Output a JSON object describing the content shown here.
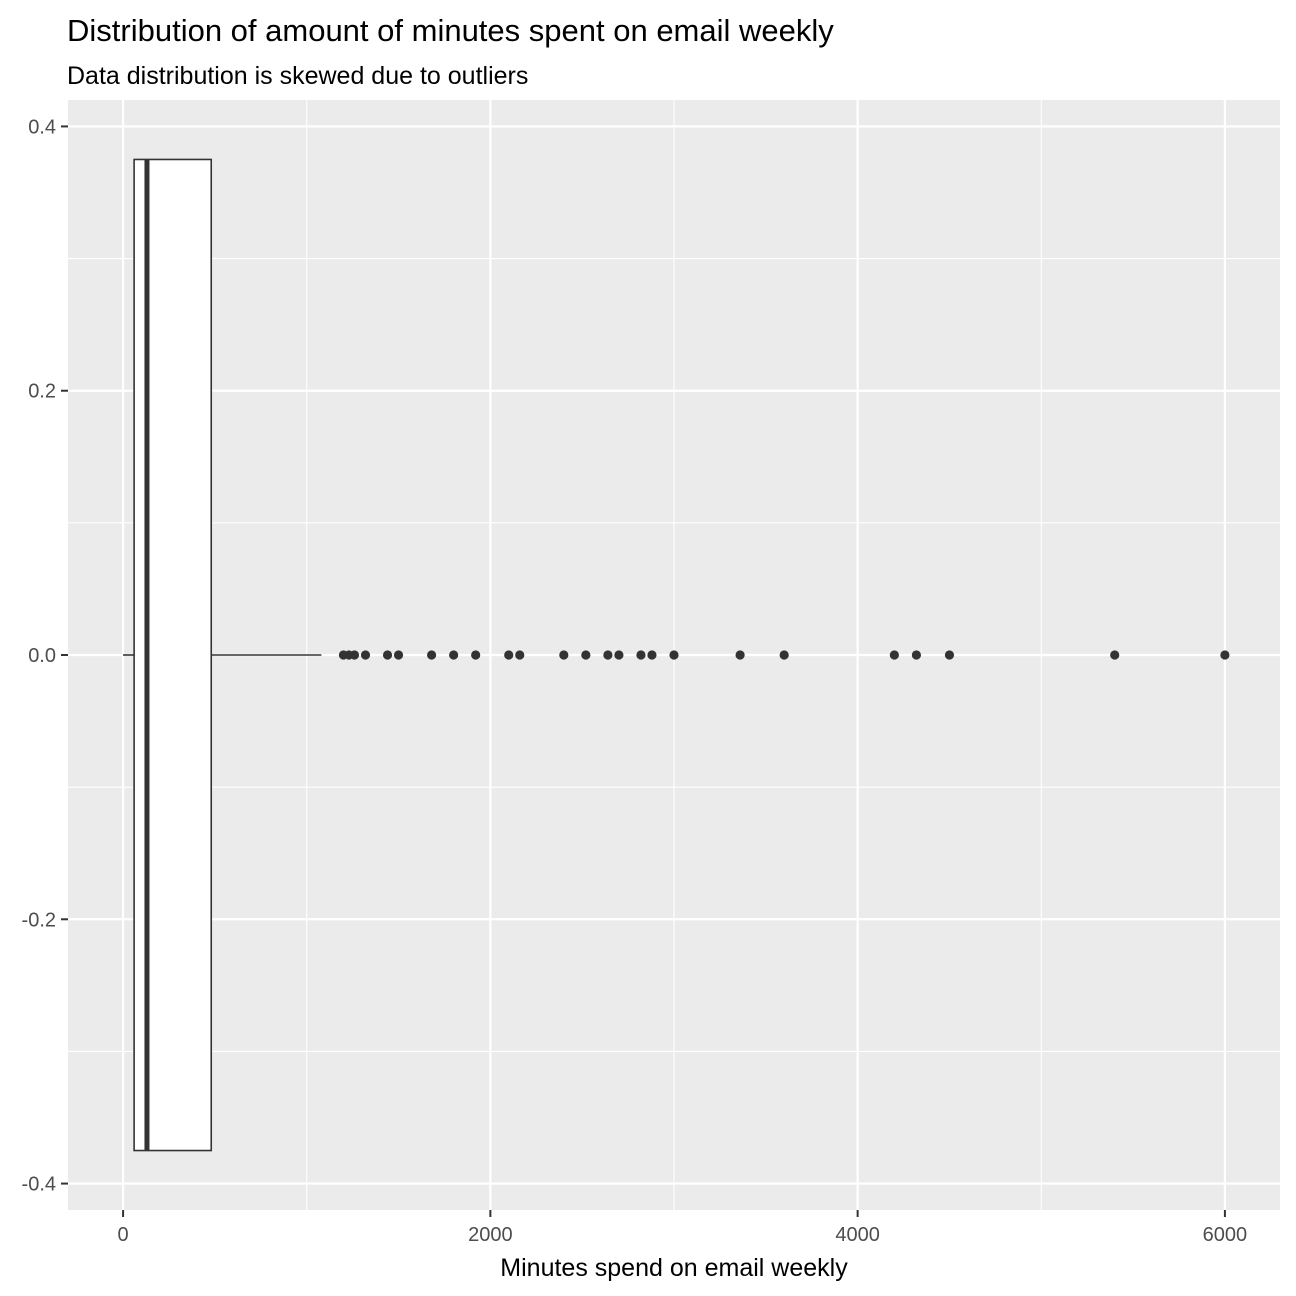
{
  "chart_data": {
    "type": "boxplot",
    "orientation": "horizontal",
    "title": "Distribution of amount of minutes spent on email weekly",
    "subtitle": "Data distribution is skewed due to outliers",
    "xlabel": "Minutes spend on email weekly",
    "ylabel": "",
    "xlim": [
      -300,
      6300
    ],
    "ylim": [
      -0.42,
      0.42
    ],
    "x_ticks": [
      0,
      2000,
      4000,
      6000
    ],
    "x_tick_labels": [
      "0",
      "2000",
      "4000",
      "6000"
    ],
    "y_ticks": [
      0.4,
      0.2,
      0.0,
      -0.2,
      -0.4
    ],
    "y_tick_labels": [
      "0.4",
      "0.2",
      "0.0",
      "-0.2",
      "-0.4"
    ],
    "box": {
      "y": 0,
      "half_height": 0.375,
      "whisker_low": 0,
      "q1": 60,
      "median": 130,
      "q3": 480,
      "whisker_high": 1080
    },
    "outliers": [
      1200,
      1230,
      1260,
      1320,
      1440,
      1500,
      1680,
      1800,
      1920,
      2100,
      2160,
      2400,
      2520,
      2640,
      2700,
      2820,
      2880,
      3000,
      3360,
      3600,
      4200,
      4320,
      4500,
      5400,
      6000
    ],
    "colors": {
      "panel_background": "#ebebeb",
      "grid": "#ffffff",
      "box_fill": "#ffffff",
      "box_stroke": "#333333",
      "outlier": "#333333"
    },
    "grid": true,
    "legend": "none"
  }
}
